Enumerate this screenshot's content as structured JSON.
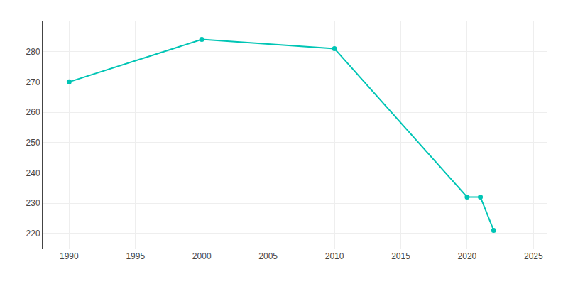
{
  "chart_data": {
    "type": "line",
    "x": [
      1990,
      2000,
      2010,
      2020,
      2021,
      2022
    ],
    "values": [
      270,
      284,
      281,
      232,
      232,
      221
    ],
    "color": "#00C5B5",
    "marker": "circle",
    "xlim": [
      1988,
      2026
    ],
    "ylim": [
      215,
      290
    ],
    "xticks": [
      1990,
      1995,
      2000,
      2005,
      2010,
      2015,
      2020,
      2025
    ],
    "yticks": [
      220,
      230,
      240,
      250,
      260,
      270,
      280
    ],
    "grid": true
  }
}
